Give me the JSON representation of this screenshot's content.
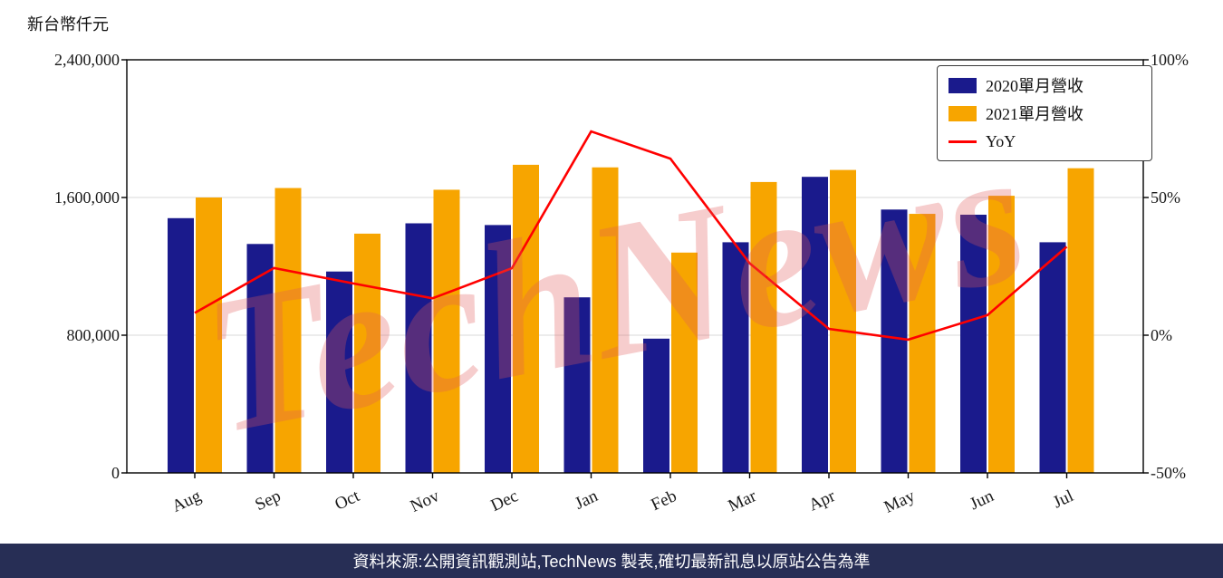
{
  "page": {
    "footer": "資料來源:公開資訊觀測站,TechNews 製表,確切最新訊息以原站公告為準"
  },
  "watermark": "TechNews",
  "chart_data": {
    "type": "bar",
    "subtype": "grouped bars with overlaid line (dual axis)",
    "categories": [
      "Aug",
      "Sep",
      "Oct",
      "Nov",
      "Dec",
      "Jan",
      "Feb",
      "Mar",
      "Apr",
      "May",
      "Jun",
      "Jul"
    ],
    "series": [
      {
        "name": "2020單月營收",
        "type": "bar",
        "axis": "left",
        "color": "#1A1A8C",
        "values": [
          1480000,
          1330000,
          1170000,
          1450000,
          1440000,
          1020000,
          780000,
          1340000,
          1720000,
          1530000,
          1500000,
          1340000
        ]
      },
      {
        "name": "2021單月營收",
        "type": "bar",
        "axis": "left",
        "color": "#F7A500",
        "values": [
          1600000,
          1655000,
          1390000,
          1645000,
          1790000,
          1775000,
          1280000,
          1690000,
          1760000,
          1505000,
          1610000,
          1770000
        ]
      },
      {
        "name": "YoY",
        "type": "line",
        "axis": "right",
        "color": "#FF0000",
        "values": [
          8.1,
          24.4,
          18.8,
          13.4,
          24.3,
          74.0,
          64.1,
          26.1,
          2.3,
          -1.6,
          7.3,
          32.1
        ]
      }
    ],
    "left_axis": {
      "title": "新台幣仟元",
      "min": 0,
      "max": 2400000,
      "tick_values": [
        0,
        800000,
        1600000,
        2400000
      ],
      "ticks": [
        "0",
        "800,000",
        "1,600,000",
        "2,400,000"
      ]
    },
    "right_axis": {
      "name": "YoY",
      "min": -50,
      "max": 100,
      "tick_values": [
        -50,
        0,
        50,
        100
      ],
      "ticks": [
        "-50%",
        "0%",
        "50%",
        "100%"
      ]
    },
    "legend": [
      "2020單月營收",
      "2021單月營收",
      "YoY"
    ],
    "legend_position": "upper right",
    "grid": "horizontal gridlines at intermediate left-axis ticks"
  }
}
